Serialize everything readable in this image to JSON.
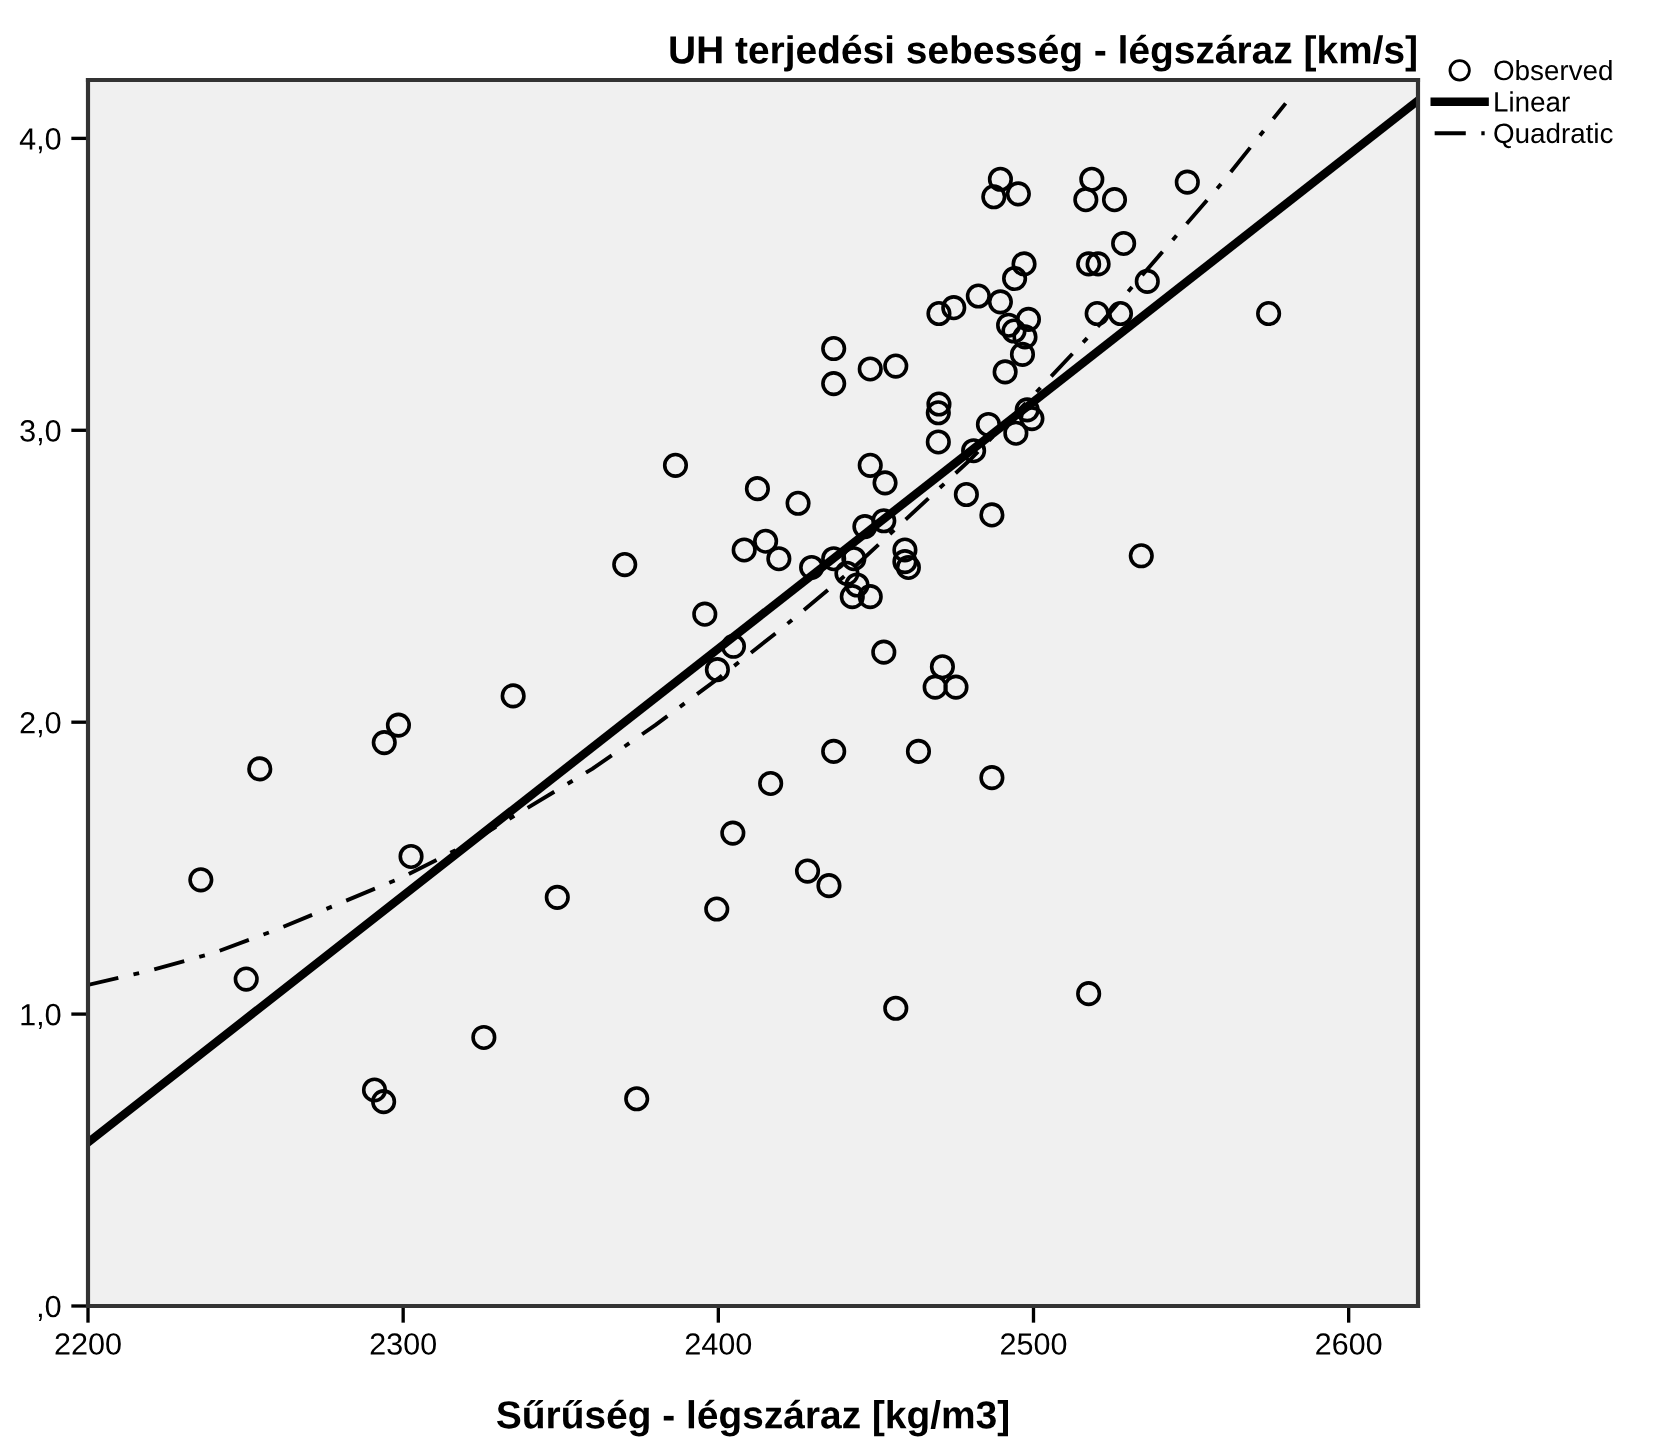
{
  "chart_data": {
    "type": "scatter",
    "title": "UH terjedési sebesség - légszáraz [km/s]",
    "xlabel": "Sűrűség - légszáraz [kg/m3]",
    "xlim": [
      2200,
      2622
    ],
    "xticks": [
      2200,
      2300,
      2400,
      2500,
      2600
    ],
    "ylim": [
      0,
      4.2
    ],
    "yticks": [
      {
        "value": 0,
        "label": ",0"
      },
      {
        "value": 1,
        "label": "1,0"
      },
      {
        "value": 2,
        "label": "2,0"
      },
      {
        "value": 3,
        "label": "3,0"
      },
      {
        "value": 4,
        "label": "4,0"
      }
    ],
    "grid": false,
    "legend": "top right",
    "series": [
      {
        "name": "Observed",
        "marker": "circle",
        "color": "#000000",
        "x": [
          2386.4,
          2370.3,
          2412.4,
          2425.3,
          2408.2,
          2415,
          2419.2,
          2395.7,
          2404.8,
          2399.7,
          2334.9,
          2298.5,
          2294,
          2436.6,
          2436.6,
          2429.6,
          2254.5,
          2235.8,
          2250.2,
          2302.5,
          2348.9,
          2325.6,
          2290.9,
          2293.8,
          2374.1,
          2399.5,
          2404.6,
          2416.6,
          2428.3,
          2435.1,
          2436.6,
          2463.5,
          2486.8,
          2456.3,
          2517.5,
          2489.5,
          2487.4,
          2495.2,
          2518.5,
          2516.6,
          2525.7,
          2548.8,
          2528.6,
          2497,
          2494,
          2517.5,
          2520.5,
          2536.1,
          2574.6,
          2520.2,
          2527.6,
          2482.5,
          2474.7,
          2470,
          2489.5,
          2498.4,
          2492.1,
          2493.8,
          2497.3,
          2496.5,
          2491,
          2448.2,
          2456.3,
          2470,
          2469.8,
          2469.8,
          2485.7,
          2494.4,
          2498,
          2499.5,
          2481,
          2448.2,
          2452.9,
          2478.7,
          2486.8,
          2452.5,
          2446.5,
          2436.6,
          2443,
          2440.8,
          2444,
          2442.5,
          2448.2,
          2459.2,
          2459.2,
          2460.3,
          2534.2,
          2452.5,
          2471.1,
          2468.8,
          2475.4
        ],
        "values": [
          2.88,
          2.54,
          2.8,
          2.75,
          2.59,
          2.62,
          2.56,
          2.37,
          2.26,
          2.18,
          2.09,
          1.99,
          1.93,
          3.28,
          3.16,
          2.53,
          1.84,
          1.46,
          1.12,
          1.54,
          1.4,
          0.92,
          0.74,
          0.7,
          0.71,
          1.36,
          1.62,
          1.79,
          1.49,
          1.44,
          1.9,
          1.9,
          1.81,
          1.02,
          1.07,
          3.86,
          3.8,
          3.81,
          3.86,
          3.79,
          3.79,
          3.85,
          3.64,
          3.57,
          3.52,
          3.57,
          3.57,
          3.51,
          3.4,
          3.4,
          3.4,
          3.46,
          3.42,
          3.4,
          3.44,
          3.38,
          3.36,
          3.34,
          3.32,
          3.26,
          3.2,
          3.21,
          3.22,
          3.09,
          3.06,
          2.96,
          3.02,
          2.99,
          3.07,
          3.04,
          2.93,
          2.88,
          2.82,
          2.78,
          2.71,
          2.69,
          2.67,
          2.56,
          2.56,
          2.51,
          2.47,
          2.43,
          2.43,
          2.59,
          2.55,
          2.53,
          2.57,
          2.24,
          2.19,
          2.12,
          2.12
        ]
      },
      {
        "name": "Linear",
        "type": "line",
        "line_style": "solid",
        "color": "#000000",
        "x": [
          2200,
          2622
        ],
        "values": [
          0.56,
          4.13
        ]
      },
      {
        "name": "Quadratic",
        "type": "line",
        "line_style": "dashdot",
        "color": "#000000",
        "x": [
          2200,
          2220,
          2240,
          2260,
          2280,
          2300,
          2320,
          2340,
          2360,
          2380,
          2400,
          2420,
          2440,
          2460,
          2480,
          2500,
          2520,
          2540,
          2560,
          2580
        ],
        "values": [
          1.1,
          1.15,
          1.21,
          1.29,
          1.38,
          1.47,
          1.58,
          1.71,
          1.84,
          1.99,
          2.15,
          2.32,
          2.5,
          2.7,
          2.9,
          3.12,
          3.35,
          3.6,
          3.85,
          4.12
        ]
      }
    ]
  }
}
